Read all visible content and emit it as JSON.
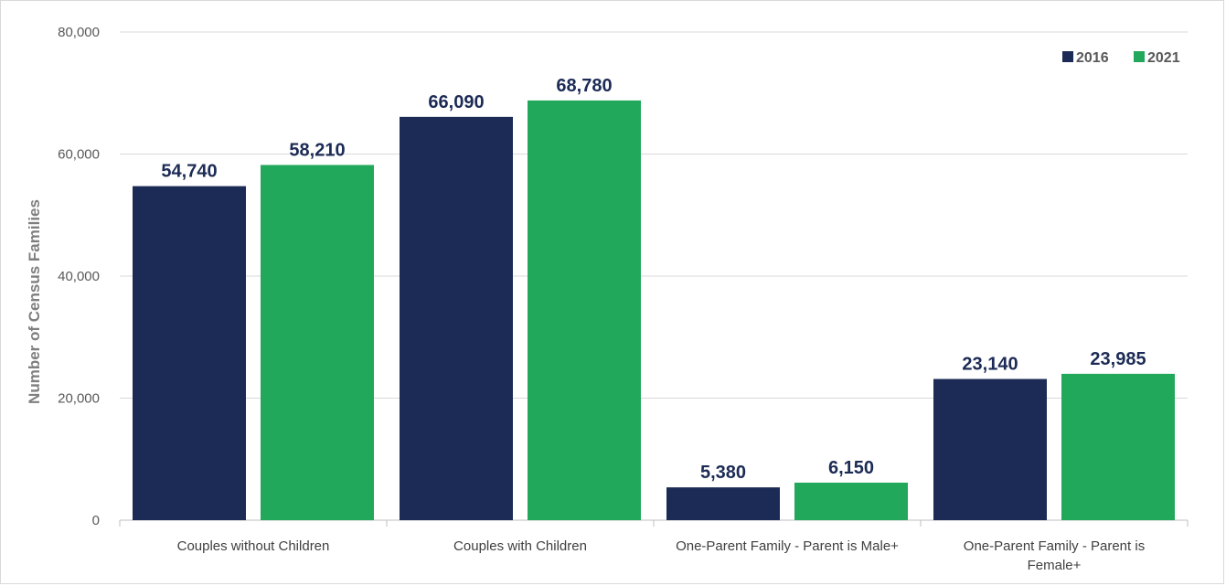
{
  "chart_data": {
    "type": "bar",
    "categories": [
      [
        "Couples without Children"
      ],
      [
        "Couples with Children"
      ],
      [
        "One-Parent Family - Parent is Male+"
      ],
      [
        "One-Parent Family - Parent is",
        "Female+"
      ]
    ],
    "series": [
      {
        "name": "2016",
        "color": "#1c2b55",
        "values": [
          54740,
          66090,
          5380,
          23140
        ],
        "labels": [
          "54,740",
          "66,090",
          "5,380",
          "23,140"
        ]
      },
      {
        "name": "2021",
        "color": "#22a85a",
        "values": [
          58210,
          68780,
          6150,
          23985
        ],
        "labels": [
          "58,210",
          "68,780",
          "6,150",
          "23,985"
        ]
      }
    ],
    "ylabel": "Number of Census Families",
    "xlabel": "",
    "ylim": [
      0,
      80000
    ],
    "yticks": [
      0,
      20000,
      40000,
      60000,
      80000
    ],
    "ytick_labels": [
      "0",
      "20,000",
      "40,000",
      "60,000",
      "80,000"
    ],
    "grid": true,
    "legend_position": "top-right",
    "gridline_color": "#d9d9d9",
    "label_color": "#1c2b55"
  }
}
